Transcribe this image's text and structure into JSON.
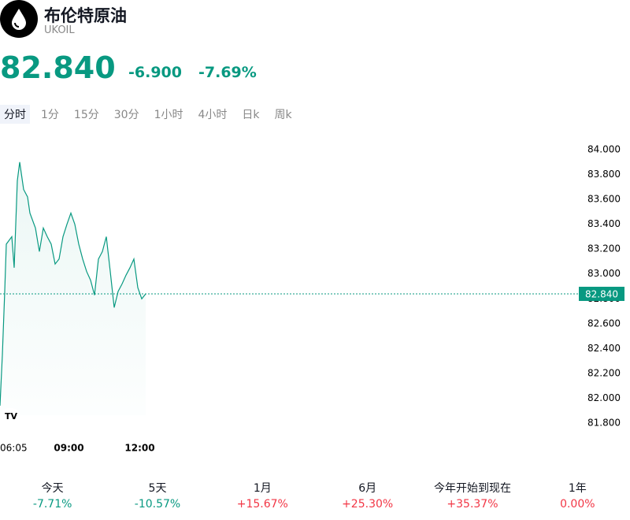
{
  "header": {
    "title": "布伦特原油",
    "symbol": "UKOIL"
  },
  "quote": {
    "price": "82.840",
    "change": "-6.900",
    "change_pct": "-7.69%"
  },
  "tabs": {
    "items": [
      "分时",
      "1分",
      "15分",
      "30分",
      "1小时",
      "4小时",
      "日k",
      "周k"
    ],
    "active": 0
  },
  "chart_data": {
    "type": "line",
    "x": [
      "06:05",
      "06:11",
      "06:17",
      "06:21",
      "06:35",
      "06:41",
      "06:49",
      "06:55",
      "07:05",
      "07:15",
      "07:21",
      "07:35",
      "07:45",
      "07:55",
      "08:05",
      "08:15",
      "08:25",
      "08:35",
      "08:45",
      "08:55",
      "09:05",
      "09:15",
      "09:25",
      "09:35",
      "09:45",
      "09:55",
      "10:05",
      "10:15",
      "10:25",
      "10:35",
      "10:45",
      "10:55",
      "11:05",
      "11:15",
      "11:25",
      "11:35",
      "11:45",
      "11:55",
      "12:05",
      "12:15"
    ],
    "values": [
      81.94,
      82.35,
      82.86,
      83.24,
      83.3,
      83.05,
      83.75,
      83.9,
      83.68,
      83.62,
      83.49,
      83.37,
      83.18,
      83.37,
      83.3,
      83.24,
      83.08,
      83.12,
      83.3,
      83.4,
      83.49,
      83.4,
      83.24,
      83.12,
      83.02,
      82.95,
      82.83,
      83.12,
      83.18,
      83.3,
      83.02,
      82.73,
      82.86,
      82.92,
      82.99,
      83.05,
      83.12,
      82.89,
      82.8,
      82.84
    ],
    "color": "#089981",
    "ylim": [
      81.8,
      84.0
    ],
    "yticks": [
      {
        "value": 84.0,
        "label": "84.000"
      },
      {
        "value": 83.8,
        "label": "83.800"
      },
      {
        "value": 83.6,
        "label": "83.600"
      },
      {
        "value": 83.4,
        "label": "83.400"
      },
      {
        "value": 83.2,
        "label": "83.200"
      },
      {
        "value": 83.0,
        "label": "83.000"
      },
      {
        "value": 82.8,
        "label": "82.800"
      },
      {
        "value": 82.6,
        "label": "82.600"
      },
      {
        "value": 82.4,
        "label": "82.400"
      },
      {
        "value": 82.2,
        "label": "82.200"
      },
      {
        "value": 82.0,
        "label": "82.000"
      },
      {
        "value": 81.8,
        "label": "81.800"
      }
    ],
    "xticks": [
      "06:05",
      "09:00",
      "12:00"
    ],
    "last_price": {
      "value": 82.84,
      "label": "82.840"
    }
  },
  "performance": [
    {
      "label": "今天",
      "value": "-7.71%",
      "color": "#089981"
    },
    {
      "label": "5天",
      "value": "-10.57%",
      "color": "#089981"
    },
    {
      "label": "1月",
      "value": "+15.67%",
      "color": "#f23645"
    },
    {
      "label": "6月",
      "value": "+25.30%",
      "color": "#f23645"
    },
    {
      "label": "今年开始到现在",
      "value": "+35.37%",
      "color": "#f23645"
    },
    {
      "label": "1年",
      "value": "0.00%",
      "color": "#f23645"
    }
  ]
}
